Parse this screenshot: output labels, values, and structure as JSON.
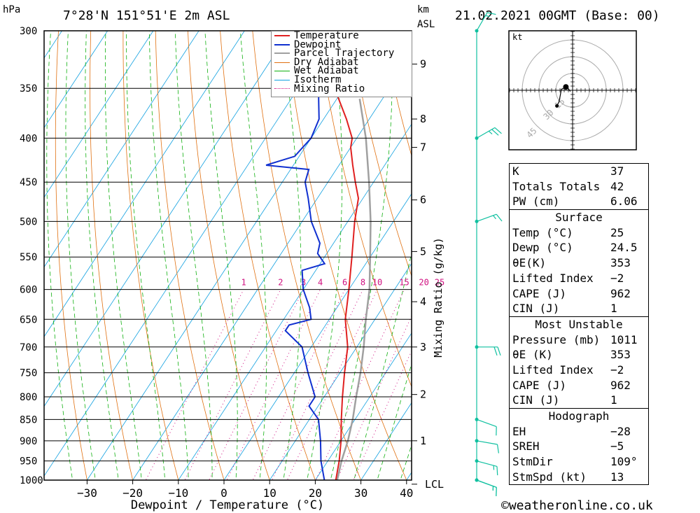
{
  "header": {
    "units_left": "hPa",
    "location": "7°28'N  151°51'E  2m  ASL",
    "units_right_1": "km",
    "units_right_2": "ASL",
    "datetime": "21.02.2021  00GMT  (Base: 00)"
  },
  "chart_data": {
    "type": "skew-t",
    "xlabel": "Dewpoint / Temperature (°C)",
    "ylabel_right": "Mixing Ratio (g/kg)",
    "x_ticks": [
      -30,
      -20,
      -10,
      0,
      10,
      20,
      30,
      40
    ],
    "x_tick_labels": [
      "−30",
      "−20",
      "−10",
      "0",
      "10",
      "20",
      "30",
      "40"
    ],
    "pressure_levels": [
      300,
      350,
      400,
      450,
      500,
      550,
      600,
      650,
      700,
      750,
      800,
      850,
      900,
      950,
      1000
    ],
    "km_levels": [
      {
        "p": 1011,
        "label": "LCL"
      },
      {
        "p": 900,
        "label": "1"
      },
      {
        "p": 795,
        "label": "2"
      },
      {
        "p": 700,
        "label": "3"
      },
      {
        "p": 620,
        "label": "4"
      },
      {
        "p": 542,
        "label": "5"
      },
      {
        "p": 472,
        "label": "6"
      },
      {
        "p": 410,
        "label": "7"
      },
      {
        "p": 380,
        "label": "8"
      },
      {
        "p": 328,
        "label": "9"
      }
    ],
    "mixing_ratio_labels": [
      "1",
      "2",
      "3",
      "4",
      "6",
      "8",
      "10",
      "15",
      "20",
      "25"
    ],
    "mixing_ratio_values": [
      1,
      2,
      3,
      4,
      6,
      8,
      10,
      15,
      20,
      25
    ],
    "legend": [
      "Temperature",
      "Dewpoint",
      "Parcel Trajectory",
      "Dry Adiabat",
      "Wet Adiabat",
      "Isotherm",
      "Mixing Ratio"
    ],
    "colors": {
      "temperature": "#e02020",
      "dewpoint": "#1030d0",
      "parcel": "#a0a0a0",
      "dry_adiabat": "#e07010",
      "wet_adiabat": "#10b010",
      "isotherm": "#10a0e0",
      "mixing_ratio": "#d01080",
      "wind": "#10c0a0"
    },
    "temperature": [
      [
        1011,
        25
      ],
      [
        1000,
        24.5
      ],
      [
        950,
        22.5
      ],
      [
        900,
        20
      ],
      [
        850,
        17
      ],
      [
        800,
        14
      ],
      [
        750,
        11
      ],
      [
        700,
        8
      ],
      [
        650,
        3.5
      ],
      [
        600,
        0
      ],
      [
        550,
        -4
      ],
      [
        500,
        -8.5
      ],
      [
        470,
        -11
      ],
      [
        450,
        -14
      ],
      [
        430,
        -17
      ],
      [
        410,
        -20
      ],
      [
        400,
        -21
      ],
      [
        380,
        -25
      ],
      [
        350,
        -32
      ]
    ],
    "dewpoint": [
      [
        1011,
        24.5
      ],
      [
        1000,
        22
      ],
      [
        950,
        18.5
      ],
      [
        900,
        15.5
      ],
      [
        850,
        12
      ],
      [
        820,
        8
      ],
      [
        800,
        8
      ],
      [
        750,
        3
      ],
      [
        700,
        -2
      ],
      [
        670,
        -8
      ],
      [
        660,
        -8
      ],
      [
        650,
        -4
      ],
      [
        630,
        -6
      ],
      [
        600,
        -10
      ],
      [
        570,
        -13
      ],
      [
        560,
        -9
      ],
      [
        545,
        -12
      ],
      [
        530,
        -13
      ],
      [
        500,
        -18
      ],
      [
        470,
        -22
      ],
      [
        450,
        -25
      ],
      [
        435,
        -26
      ],
      [
        430,
        -36
      ],
      [
        420,
        -31
      ],
      [
        400,
        -30
      ],
      [
        380,
        -31
      ],
      [
        360,
        -34
      ],
      [
        340,
        -37
      ],
      [
        320,
        -41
      ],
      [
        300,
        -49
      ]
    ],
    "parcel": [
      [
        1011,
        25
      ],
      [
        1000,
        24.8
      ],
      [
        950,
        23
      ],
      [
        900,
        21.5
      ],
      [
        850,
        19.5
      ],
      [
        800,
        17
      ],
      [
        750,
        14.5
      ],
      [
        700,
        11.5
      ],
      [
        650,
        8
      ],
      [
        600,
        4.5
      ],
      [
        550,
        0
      ],
      [
        500,
        -5
      ],
      [
        450,
        -11
      ],
      [
        400,
        -18
      ],
      [
        360,
        -25
      ]
    ],
    "winds": [
      {
        "p": 1011,
        "dir": 110,
        "kt": 13
      },
      {
        "p": 1000,
        "dir": 110,
        "kt": 15
      },
      {
        "p": 950,
        "dir": 105,
        "kt": 15
      },
      {
        "p": 900,
        "dir": 100,
        "kt": 12
      },
      {
        "p": 850,
        "dir": 110,
        "kt": 12
      },
      {
        "p": 700,
        "dir": 90,
        "kt": 20
      },
      {
        "p": 500,
        "dir": 70,
        "kt": 15
      },
      {
        "p": 400,
        "dir": 60,
        "kt": 25
      },
      {
        "p": 300,
        "dir": 30,
        "kt": 15
      }
    ]
  },
  "hodograph": {
    "unit": "kt",
    "ring_labels": [
      "15",
      "30",
      "45"
    ],
    "points": [
      [
        -2,
        -1
      ],
      [
        -5,
        3
      ],
      [
        -10,
        1
      ],
      [
        -12,
        -10
      ],
      [
        -14,
        -14
      ]
    ]
  },
  "legend_labels": {
    "temperature": "Temperature",
    "dewpoint": "Dewpoint",
    "parcel": "Parcel Trajectory",
    "dry": "Dry Adiabat",
    "wet": "Wet Adiabat",
    "iso": "Isotherm",
    "mix": "Mixing Ratio"
  },
  "indices": {
    "k_label": "K",
    "k_value": "37",
    "tt_label": "Totals Totals",
    "tt_value": "42",
    "pw_label": "PW (cm)",
    "pw_value": "6.06",
    "surface_title": "Surface",
    "temp_label": "Temp (°C)",
    "temp_value": "25",
    "dewp_label": "Dewp (°C)",
    "dewp_value": "24.5",
    "theta_label": "θE(K)",
    "theta_value": "353",
    "li_label": "Lifted Index",
    "li_value": "−2",
    "cape_label": "CAPE (J)",
    "cape_value": "962",
    "cin_label": "CIN (J)",
    "cin_value": "1",
    "mu_title": "Most Unstable",
    "mu_pressure_label": "Pressure (mb)",
    "mu_pressure_value": "1011",
    "mu_theta_label": "θE (K)",
    "mu_theta_value": "353",
    "mu_li_label": "Lifted Index",
    "mu_li_value": "−2",
    "mu_cape_label": "CAPE (J)",
    "mu_cape_value": "962",
    "mu_cin_label": "CIN (J)",
    "mu_cin_value": "1",
    "hodo_title": "Hodograph",
    "eh_label": "EH",
    "eh_value": "−28",
    "sreh_label": "SREH",
    "sreh_value": "−5",
    "stmdir_label": "StmDir",
    "stmdir_value": "109°",
    "stmspd_label": "StmSpd (kt)",
    "stmspd_value": "13"
  },
  "footer": {
    "copyright": "©weatheronline.co.uk"
  }
}
